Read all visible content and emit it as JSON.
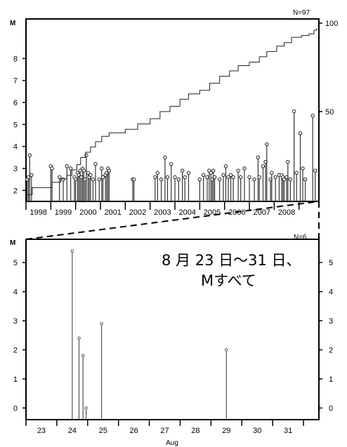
{
  "chart_data": [
    {
      "type": "line",
      "id": "top",
      "title": "",
      "ylabel": "M",
      "count_label": "N=97",
      "ylim": [
        1.5,
        9.8
      ],
      "y_ticks": [
        2,
        3,
        4,
        5,
        6,
        7,
        8
      ],
      "y2lim": [
        0,
        100
      ],
      "y2_ticks": [
        50,
        100
      ],
      "xlim": [
        1997.5,
        2009.3
      ],
      "x_tick_labels": [
        "1998",
        "1999",
        "2000",
        "2001",
        "2002",
        "2003",
        "2004",
        "2005",
        "2006",
        "2007",
        "2008"
      ],
      "series": [
        {
          "kind": "stem",
          "x": [
            1997.55,
            1997.6,
            1997.65,
            1997.72,
            1998.5,
            1998.55,
            1998.85,
            1999.0,
            1999.15,
            1999.3,
            1999.45,
            1999.5,
            1999.58,
            1999.63,
            1999.68,
            1999.73,
            1999.78,
            1999.83,
            1999.88,
            1999.93,
            2000.0,
            2000.05,
            2000.1,
            2000.2,
            2000.3,
            2000.45,
            2000.55,
            2000.6,
            2000.7,
            2000.75,
            2000.8,
            2000.85,
            2001.8,
            2001.85,
            2002.7,
            2002.8,
            2002.95,
            2003.1,
            2003.2,
            2003.35,
            2003.5,
            2003.65,
            2003.8,
            2003.9,
            2004.05,
            2004.5,
            2004.65,
            2004.8,
            2004.88,
            2004.95,
            2005.0,
            2005.05,
            2005.1,
            2005.3,
            2005.45,
            2005.55,
            2005.65,
            2005.75,
            2005.85,
            2006.05,
            2006.15,
            2006.3,
            2006.5,
            2006.7,
            2006.85,
            2006.9,
            2007.05,
            2007.15,
            2007.2,
            2007.35,
            2007.4,
            2007.55,
            2007.7,
            2007.8,
            2007.85,
            2007.9,
            2008.0,
            2008.05,
            2008.15,
            2008.3,
            2008.4,
            2008.55,
            2008.65,
            2008.75,
            2009.05,
            2009.15
          ],
          "y": [
            2.5,
            2.6,
            3.6,
            2.7,
            3.1,
            3.0,
            2.6,
            2.5,
            3.1,
            3.0,
            2.6,
            2.5,
            2.8,
            2.7,
            2.9,
            2.6,
            3.0,
            2.9,
            2.5,
            3.6,
            2.8,
            2.6,
            2.7,
            2.5,
            3.2,
            2.5,
            3.0,
            2.6,
            2.7,
            2.8,
            3.0,
            2.9,
            2.5,
            2.5,
            2.6,
            2.8,
            2.5,
            3.5,
            2.6,
            3.2,
            2.6,
            2.5,
            2.9,
            2.6,
            2.8,
            2.5,
            2.7,
            2.6,
            2.9,
            2.8,
            2.5,
            2.9,
            2.6,
            2.5,
            2.7,
            3.1,
            2.6,
            2.7,
            2.6,
            2.9,
            2.6,
            3.0,
            2.6,
            2.5,
            3.5,
            2.6,
            3.1,
            3.3,
            4.1,
            2.5,
            2.8,
            2.6,
            2.7,
            2.7,
            2.6,
            2.5,
            2.6,
            3.3,
            2.5,
            5.6,
            2.8,
            4.6,
            3.0,
            2.5,
            5.4,
            2.9
          ]
        },
        {
          "kind": "cumulative-count",
          "x": [
            1997.5,
            1997.75,
            1998.5,
            1998.55,
            1998.9,
            1999.15,
            1999.35,
            1999.55,
            1999.7,
            1999.9,
            2000.1,
            2000.3,
            2000.55,
            2000.85,
            2001.5,
            2002.0,
            2002.5,
            2002.9,
            2003.3,
            2003.7,
            2004.05,
            2004.5,
            2004.9,
            2005.3,
            2005.7,
            2006.05,
            2006.5,
            2006.9,
            2007.2,
            2007.6,
            2007.9,
            2008.2,
            2008.6,
            2008.9,
            2009.1,
            2009.2
          ],
          "y": [
            3,
            7,
            7,
            10,
            12,
            14,
            17,
            20,
            24,
            27,
            30,
            33,
            36,
            38,
            40,
            43,
            46,
            50,
            53,
            57,
            60,
            62,
            66,
            70,
            73,
            76,
            78,
            81,
            84,
            87,
            89,
            92,
            93,
            94,
            96,
            97
          ]
        }
      ]
    },
    {
      "type": "stem",
      "id": "bottom",
      "ylabel": "M",
      "count_label": "N=6",
      "xlabel": "Aug",
      "ylim": [
        -0.4,
        5.8
      ],
      "y_ticks": [
        0,
        1,
        2,
        3,
        4,
        5
      ],
      "xlim": [
        22.5,
        32.0
      ],
      "x_tick_labels": [
        "23",
        "24",
        "25",
        "26",
        "27",
        "28",
        "29",
        "30",
        "31"
      ],
      "x_tick_values": [
        23,
        24,
        25,
        26,
        27,
        28,
        29,
        30,
        31
      ],
      "series": [
        {
          "kind": "stem",
          "x": [
            24.0,
            24.22,
            24.35,
            24.45,
            24.95,
            29.0
          ],
          "y": [
            5.4,
            2.4,
            1.8,
            0.0,
            2.9,
            2.0
          ]
        }
      ]
    }
  ],
  "annotation": {
    "line1": "8 月 23 日～31 日、",
    "line2": "Mすべて"
  }
}
